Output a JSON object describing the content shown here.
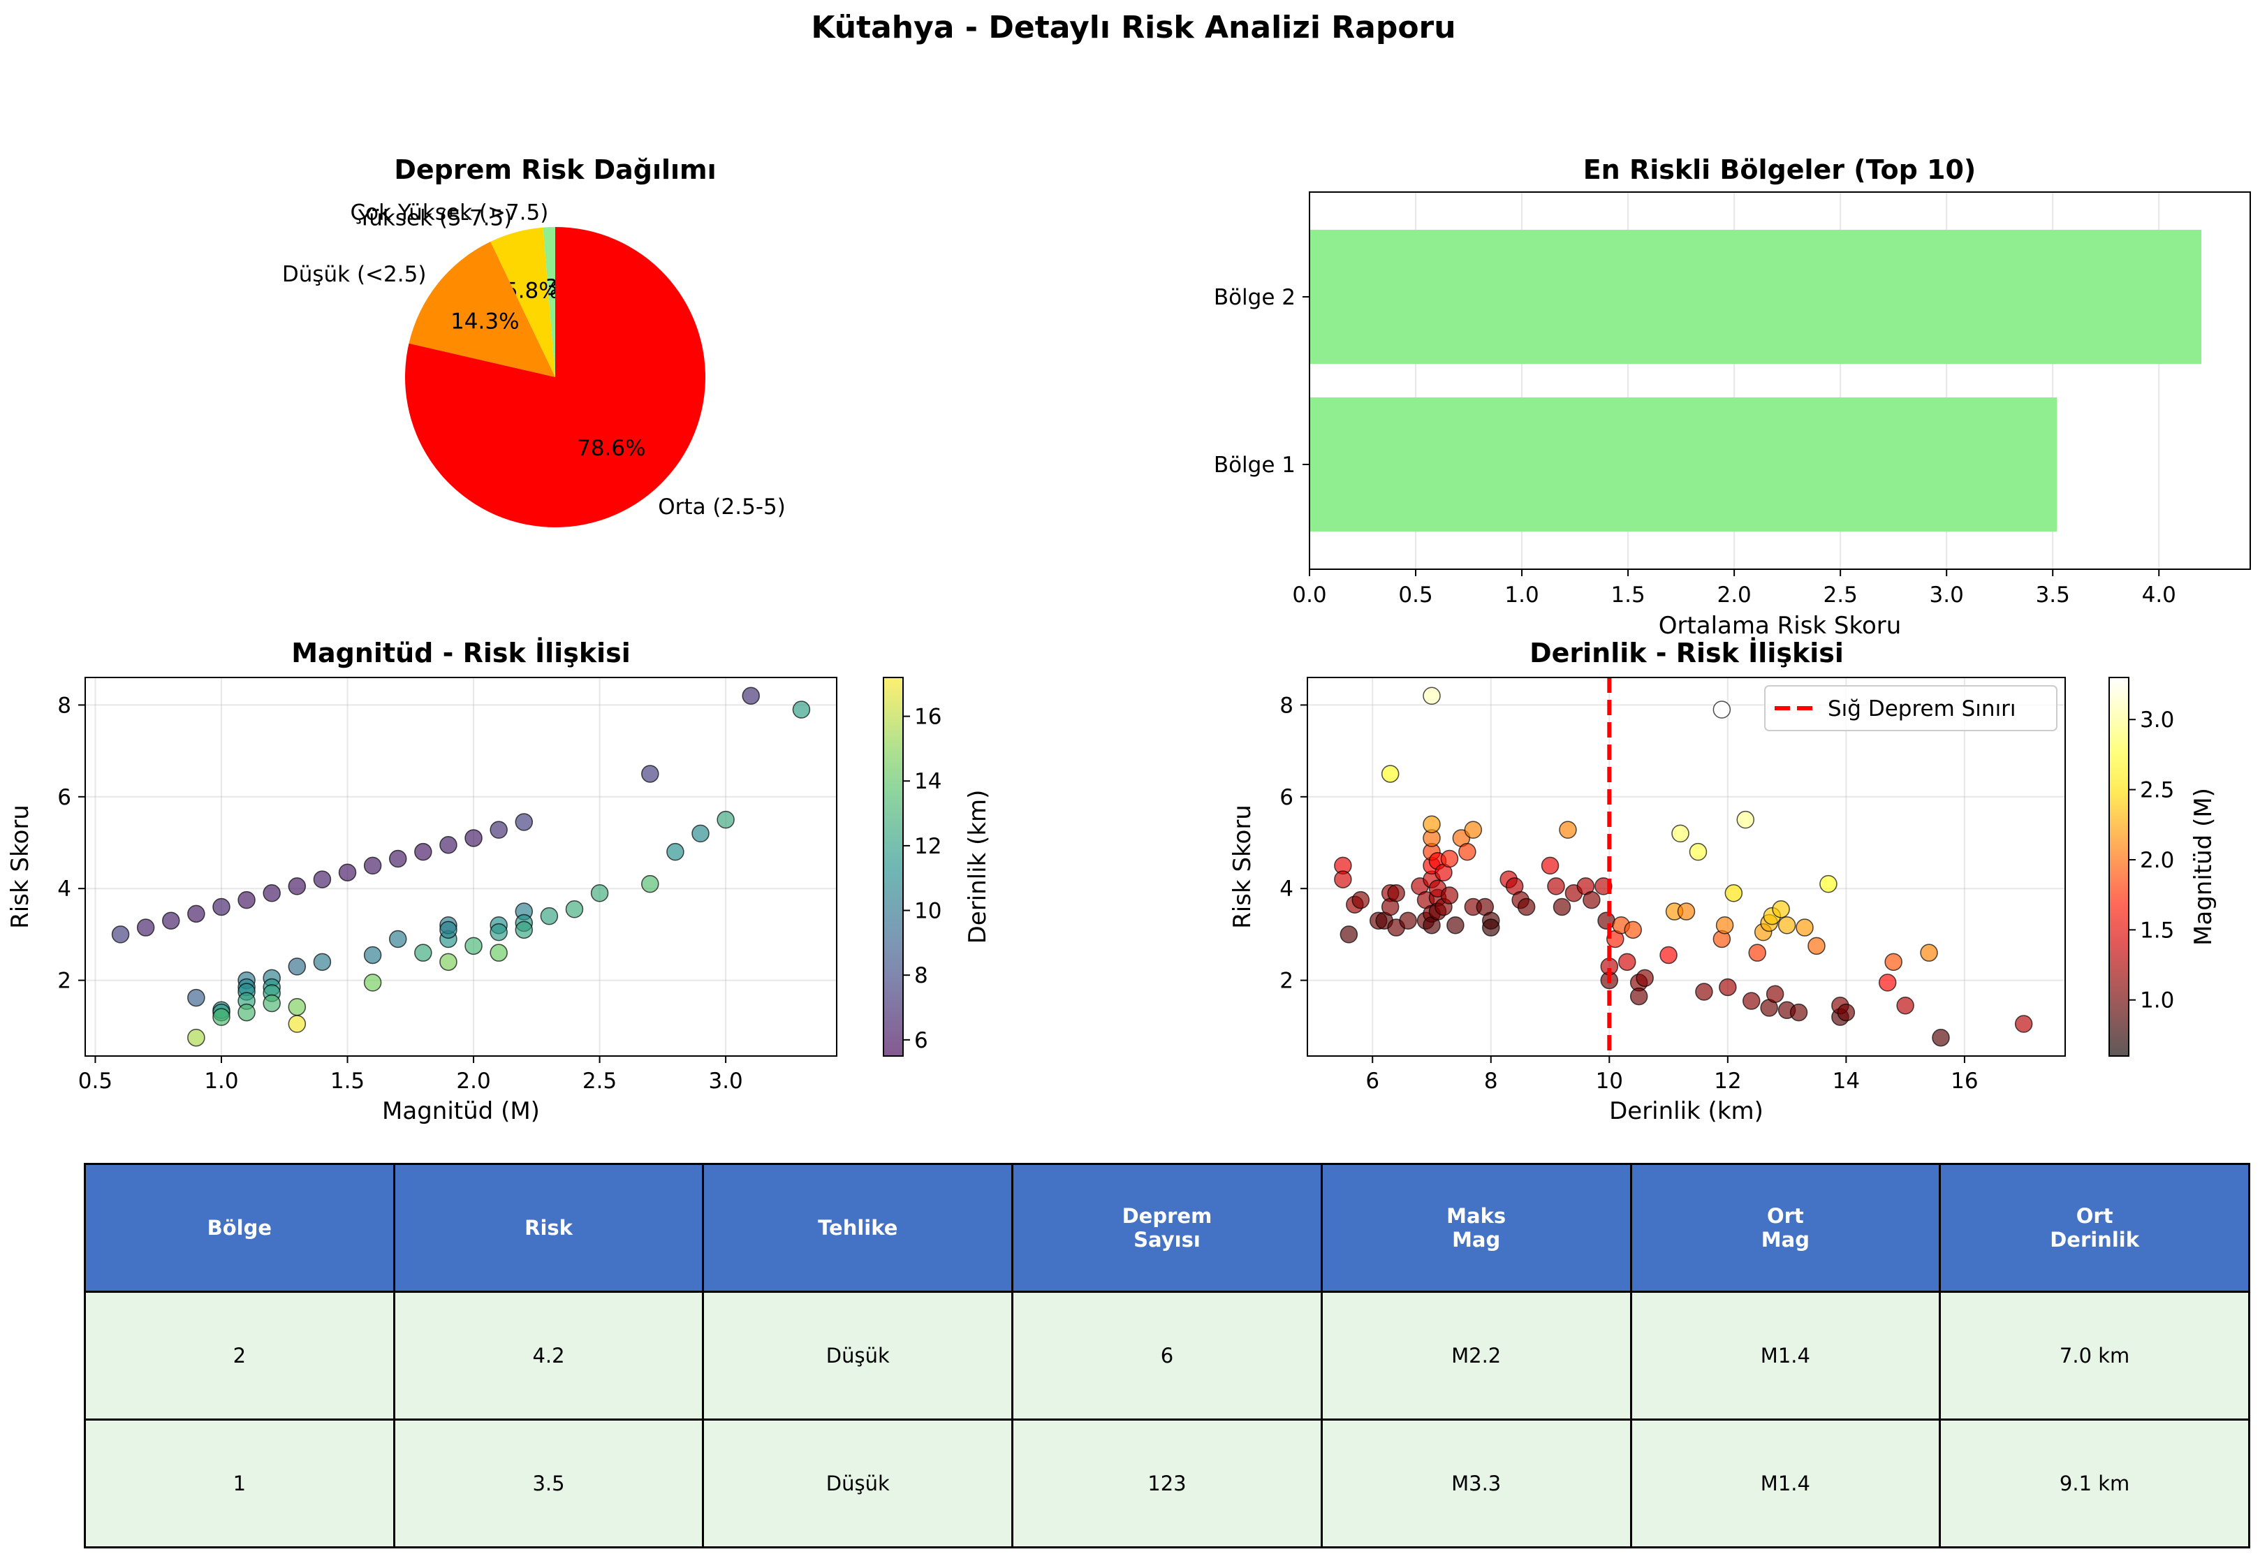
{
  "figure_title": "Kütahya - Detaylı Risk Analizi Raporu",
  "chart_data": [
    {
      "id": "pie",
      "type": "pie",
      "title": "Deprem Risk Dağılımı",
      "slices": [
        {
          "label": "Çok Yüksek (>7.5)",
          "value": 1.3,
          "pct_label": "1.3%",
          "color": "#90ee90"
        },
        {
          "label": "Yüksek (5-7.5)",
          "value": 5.8,
          "pct_label": "5.8%",
          "color": "#ffd700"
        },
        {
          "label": "Düşük (<2.5)",
          "value": 14.3,
          "pct_label": "14.3%",
          "color": "#ff8c00"
        },
        {
          "label": "Orta (2.5-5)",
          "value": 78.6,
          "pct_label": "78.6%",
          "color": "#ff0000"
        }
      ]
    },
    {
      "id": "bar",
      "type": "bar",
      "orientation": "horizontal",
      "title": "En Riskli Bölgeler (Top 10)",
      "categories": [
        "Bölge 1",
        "Bölge 2"
      ],
      "values": [
        3.52,
        4.2
      ],
      "color": "#90ee90",
      "xlabel": "Ortalama Risk Skoru",
      "xlim": [
        0,
        4.43
      ],
      "xticks": [
        "0.0",
        "0.5",
        "1.0",
        "1.5",
        "2.0",
        "2.5",
        "3.0",
        "3.5",
        "4.0"
      ],
      "grid": true
    },
    {
      "id": "scatter_mag",
      "type": "scatter",
      "title": "Magnitüd - Risk İlişkisi",
      "xlabel": "Magnitüd (M)",
      "ylabel": "Risk Skoru",
      "xlim": [
        0.46,
        3.44
      ],
      "ylim": [
        0.35,
        8.6
      ],
      "xticks": [
        "0.5",
        "1.0",
        "1.5",
        "2.0",
        "2.5",
        "3.0"
      ],
      "yticks": [
        "2",
        "4",
        "6",
        "8"
      ],
      "colorbar": {
        "label": "Derinlik (km)",
        "min": 5.5,
        "max": 17.2,
        "ticks": [
          "6",
          "8",
          "10",
          "12",
          "14",
          "16"
        ],
        "colormap": "viridis"
      },
      "grid": true,
      "points": [
        [
          0.6,
          3.0,
          7.6
        ],
        [
          0.7,
          3.15,
          6.5
        ],
        [
          0.8,
          3.3,
          6.4
        ],
        [
          0.9,
          3.45,
          6.3
        ],
        [
          1.0,
          3.6,
          6.6
        ],
        [
          1.1,
          3.75,
          6.2
        ],
        [
          1.2,
          3.9,
          6.3
        ],
        [
          1.3,
          4.05,
          6.2
        ],
        [
          1.4,
          4.2,
          6.4
        ],
        [
          1.5,
          4.35,
          6.2
        ],
        [
          1.6,
          4.5,
          6.3
        ],
        [
          1.7,
          4.65,
          6.3
        ],
        [
          1.8,
          4.8,
          6.2
        ],
        [
          1.9,
          4.95,
          6.4
        ],
        [
          2.0,
          5.1,
          6.3
        ],
        [
          2.1,
          5.28,
          7.0
        ],
        [
          2.2,
          5.45,
          7.6
        ],
        [
          0.9,
          1.62,
          9.0
        ],
        [
          0.9,
          0.75,
          15.6
        ],
        [
          1.0,
          1.35,
          11.3
        ],
        [
          1.0,
          1.3,
          11.8
        ],
        [
          1.0,
          1.2,
          13.4
        ],
        [
          1.1,
          2.0,
          10.2
        ],
        [
          1.1,
          1.85,
          11.0
        ],
        [
          1.1,
          1.75,
          11.2
        ],
        [
          1.1,
          1.55,
          12.3
        ],
        [
          1.1,
          1.3,
          13.3
        ],
        [
          1.2,
          2.05,
          10.4
        ],
        [
          1.2,
          1.85,
          11.8
        ],
        [
          1.2,
          1.72,
          12.2
        ],
        [
          1.2,
          1.5,
          13.3
        ],
        [
          1.3,
          1.42,
          14.8
        ],
        [
          1.3,
          1.05,
          17.0
        ],
        [
          1.3,
          2.3,
          9.6
        ],
        [
          1.4,
          2.4,
          10.2
        ],
        [
          1.6,
          2.55,
          10.3
        ],
        [
          1.6,
          1.95,
          14.6
        ],
        [
          1.7,
          2.9,
          10.3
        ],
        [
          1.8,
          2.6,
          12.5
        ],
        [
          1.9,
          2.9,
          11.5
        ],
        [
          1.9,
          2.4,
          14.8
        ],
        [
          1.9,
          3.2,
          10.2
        ],
        [
          1.9,
          3.1,
          10.7
        ],
        [
          2.0,
          2.75,
          13.1
        ],
        [
          2.1,
          3.2,
          11.2
        ],
        [
          2.1,
          3.05,
          11.8
        ],
        [
          2.1,
          2.6,
          14.4
        ],
        [
          2.2,
          3.5,
          10.4
        ],
        [
          2.2,
          3.25,
          11.6
        ],
        [
          2.2,
          3.1,
          12.3
        ],
        [
          2.3,
          3.4,
          12.2
        ],
        [
          2.4,
          3.55,
          12.7
        ],
        [
          2.5,
          3.9,
          12.7
        ],
        [
          2.7,
          4.1,
          13.6
        ],
        [
          2.7,
          6.5,
          7.6
        ],
        [
          2.8,
          4.8,
          11.2
        ],
        [
          2.9,
          5.2,
          11.0
        ],
        [
          3.0,
          5.5,
          12.4
        ],
        [
          3.1,
          8.2,
          7.0
        ],
        [
          3.3,
          7.9,
          11.9
        ]
      ]
    },
    {
      "id": "scatter_depth",
      "type": "scatter",
      "title": "Derinlik - Risk İlişkisi",
      "xlabel": "Derinlik (km)",
      "ylabel": "Risk Skoru",
      "xlim": [
        4.9,
        17.7
      ],
      "ylim": [
        0.35,
        8.6
      ],
      "xticks": [
        "6",
        "8",
        "10",
        "12",
        "14",
        "16"
      ],
      "yticks": [
        "2",
        "4",
        "6",
        "8"
      ],
      "reference_line": {
        "x": 10,
        "label": "Sığ Deprem Sınırı",
        "color": "#ff0000"
      },
      "colorbar": {
        "label": "Magnitüd (M)",
        "min": 0.6,
        "max": 3.3,
        "ticks": [
          "1.0",
          "1.5",
          "2.0",
          "2.5",
          "3.0"
        ],
        "colormap": "hot"
      },
      "grid": true,
      "points": [
        [
          5.5,
          4.5,
          1.5
        ],
        [
          5.5,
          4.2,
          1.4
        ],
        [
          5.6,
          3.0,
          0.9
        ],
        [
          5.7,
          3.65,
          1.2
        ],
        [
          5.8,
          3.75,
          1.1
        ],
        [
          6.1,
          3.3,
          1.0
        ],
        [
          6.2,
          3.3,
          0.9
        ],
        [
          6.3,
          3.9,
          1.2
        ],
        [
          6.3,
          3.6,
          1.1
        ],
        [
          6.4,
          3.9,
          1.1
        ],
        [
          6.3,
          6.5,
          2.7
        ],
        [
          6.4,
          3.15,
          1.0
        ],
        [
          6.6,
          3.3,
          1.0
        ],
        [
          6.8,
          4.05,
          1.3
        ],
        [
          6.9,
          3.75,
          1.2
        ],
        [
          6.9,
          3.3,
          1.0
        ],
        [
          7.0,
          4.2,
          1.4
        ],
        [
          7.0,
          4.5,
          1.6
        ],
        [
          7.0,
          4.8,
          1.8
        ],
        [
          7.0,
          5.1,
          2.0
        ],
        [
          7.0,
          5.4,
          2.2
        ],
        [
          7.0,
          3.45,
          1.1
        ],
        [
          7.0,
          3.2,
          0.9
        ],
        [
          7.0,
          8.2,
          3.1
        ],
        [
          7.1,
          3.8,
          1.2
        ],
        [
          7.1,
          4.0,
          1.3
        ],
        [
          7.1,
          3.5,
          1.0
        ],
        [
          7.1,
          4.6,
          1.6
        ],
        [
          7.2,
          4.35,
          1.5
        ],
        [
          7.2,
          3.6,
          1.1
        ],
        [
          7.3,
          4.65,
          1.7
        ],
        [
          7.3,
          3.85,
          1.2
        ],
        [
          7.4,
          3.2,
          0.9
        ],
        [
          7.5,
          5.1,
          2.0
        ],
        [
          7.6,
          4.8,
          1.8
        ],
        [
          7.7,
          5.28,
          2.1
        ],
        [
          7.7,
          3.6,
          1.1
        ],
        [
          7.9,
          3.6,
          1.0
        ],
        [
          8.0,
          3.3,
          0.9
        ],
        [
          8.0,
          3.15,
          0.8
        ],
        [
          8.3,
          4.2,
          1.4
        ],
        [
          8.4,
          4.05,
          1.3
        ],
        [
          8.5,
          3.75,
          1.1
        ],
        [
          8.6,
          3.6,
          1.0
        ],
        [
          9.0,
          4.5,
          1.5
        ],
        [
          9.1,
          4.05,
          1.3
        ],
        [
          9.2,
          3.6,
          1.0
        ],
        [
          9.3,
          5.28,
          2.1
        ],
        [
          9.4,
          3.9,
          1.2
        ],
        [
          9.6,
          4.05,
          1.3
        ],
        [
          9.7,
          3.75,
          1.1
        ],
        [
          9.9,
          4.05,
          1.3
        ],
        [
          9.95,
          3.3,
          1.0
        ],
        [
          10.0,
          2.0,
          1.0
        ],
        [
          10.0,
          2.3,
          1.3
        ],
        [
          10.1,
          2.9,
          1.7
        ],
        [
          10.2,
          3.2,
          1.9
        ],
        [
          10.3,
          2.4,
          1.4
        ],
        [
          10.4,
          3.1,
          1.9
        ],
        [
          10.5,
          1.95,
          1.1
        ],
        [
          10.5,
          1.65,
          1.0
        ],
        [
          10.6,
          2.05,
          1.1
        ],
        [
          11.0,
          2.55,
          1.6
        ],
        [
          11.1,
          3.5,
          2.2
        ],
        [
          11.2,
          5.2,
          2.9
        ],
        [
          11.3,
          3.5,
          2.1
        ],
        [
          11.5,
          4.8,
          2.8
        ],
        [
          11.6,
          1.75,
          1.1
        ],
        [
          11.9,
          2.9,
          1.9
        ],
        [
          11.95,
          3.2,
          2.1
        ],
        [
          12.0,
          1.85,
          1.2
        ],
        [
          11.9,
          7.9,
          3.3
        ],
        [
          12.1,
          3.9,
          2.5
        ],
        [
          12.3,
          5.5,
          3.0
        ],
        [
          12.5,
          2.6,
          1.8
        ],
        [
          12.4,
          1.55,
          1.1
        ],
        [
          12.6,
          3.05,
          2.2
        ],
        [
          12.7,
          3.25,
          2.3
        ],
        [
          12.75,
          3.4,
          2.4
        ],
        [
          12.7,
          1.4,
          1.0
        ],
        [
          12.8,
          1.7,
          1.1
        ],
        [
          12.9,
          3.55,
          2.4
        ],
        [
          13.0,
          3.2,
          2.3
        ],
        [
          13.0,
          1.35,
          1.0
        ],
        [
          13.2,
          1.3,
          1.0
        ],
        [
          13.3,
          3.15,
          2.2
        ],
        [
          13.5,
          2.75,
          2.0
        ],
        [
          13.7,
          4.1,
          2.7
        ],
        [
          13.9,
          1.2,
          0.9
        ],
        [
          13.9,
          1.45,
          1.1
        ],
        [
          14.0,
          1.3,
          1.0
        ],
        [
          14.7,
          1.95,
          1.6
        ],
        [
          14.8,
          2.4,
          1.9
        ],
        [
          15.0,
          1.45,
          1.3
        ],
        [
          15.4,
          2.6,
          2.1
        ],
        [
          15.6,
          0.75,
          0.9
        ],
        [
          17.0,
          1.05,
          1.3
        ]
      ]
    }
  ],
  "table": {
    "headers": [
      "Bölge",
      "Risk",
      "Tehlike",
      "Deprem\nSayısı",
      "Maks\nMag",
      "Ort\nMag",
      "Ort\nDerinlik"
    ],
    "rows": [
      [
        "2",
        "4.2",
        "Düşük",
        "6",
        "M2.2",
        "M1.4",
        "7.0 km"
      ],
      [
        "1",
        "3.5",
        "Düşük",
        "123",
        "M3.3",
        "M1.4",
        "9.1 km"
      ]
    ],
    "header_color": "#4472c4",
    "row_color": "#e6f5e6"
  }
}
